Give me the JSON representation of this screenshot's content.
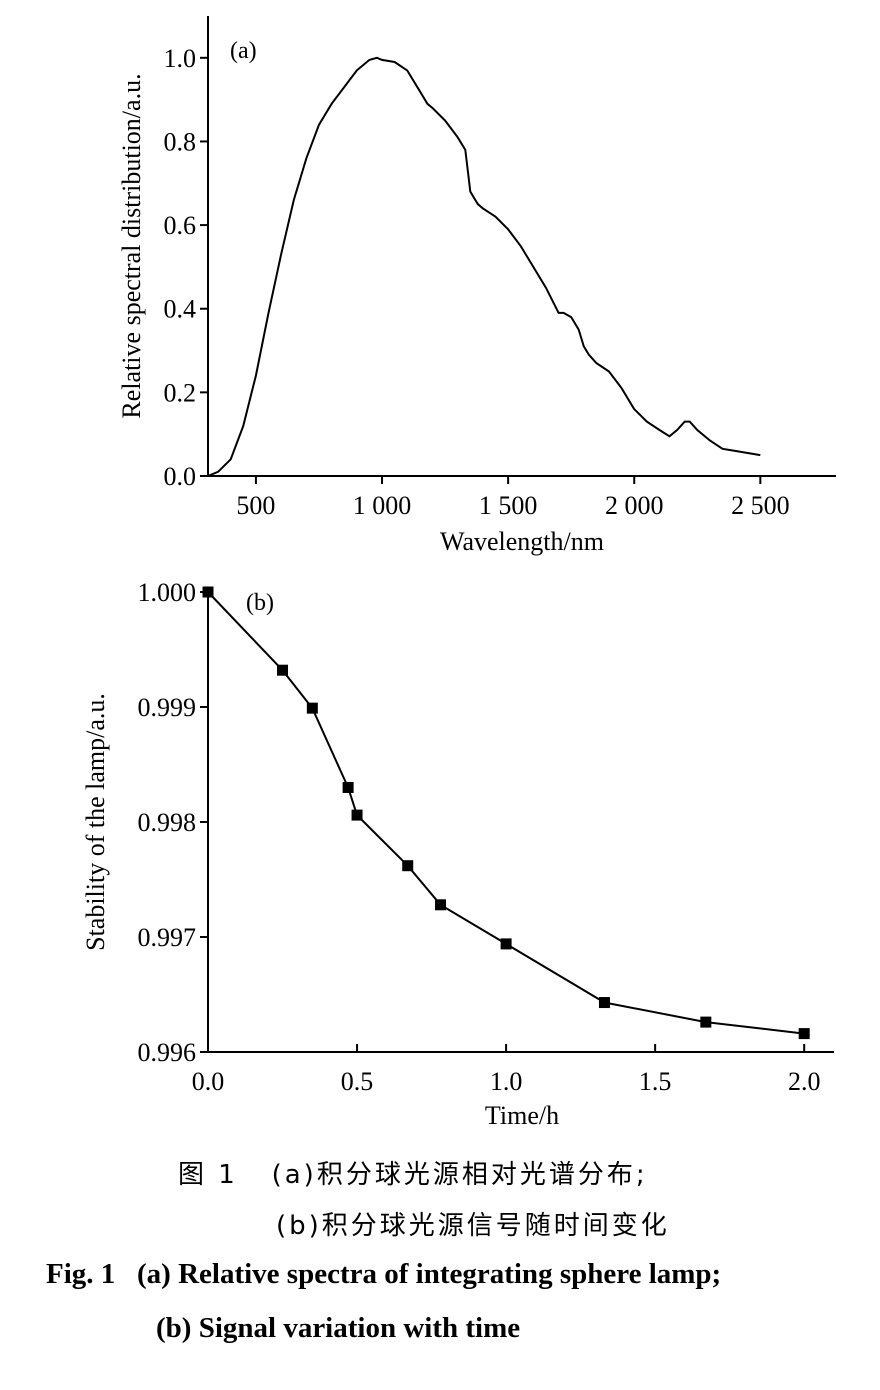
{
  "chart_data": [
    {
      "type": "line",
      "panel_label": "(a)",
      "xlabel": "Wavelength/nm",
      "ylabel": "Relative spectral distribution/a.u.",
      "xlim": [
        310,
        2800
      ],
      "ylim": [
        0,
        1.1
      ],
      "x_ticks": [
        500,
        1000,
        1500,
        2000,
        2500
      ],
      "x_tick_labels": [
        "500",
        "1 000",
        "1 500",
        "2 000",
        "2 500"
      ],
      "y_ticks": [
        0.0,
        0.2,
        0.4,
        0.6,
        0.8,
        1.0
      ],
      "y_tick_labels": [
        "0.0",
        "0.2",
        "0.4",
        "0.6",
        "0.8",
        "1.0"
      ],
      "grid": false,
      "series": [
        {
          "x": [
            310,
            350,
            400,
            450,
            500,
            550,
            600,
            650,
            700,
            750,
            800,
            850,
            900,
            950,
            980,
            1000,
            1050,
            1100,
            1150,
            1180,
            1200,
            1250,
            1300,
            1330,
            1350,
            1370,
            1380,
            1400,
            1450,
            1500,
            1550,
            1600,
            1650,
            1700,
            1720,
            1750,
            1780,
            1800,
            1820,
            1850,
            1900,
            1950,
            2000,
            2050,
            2100,
            2140,
            2170,
            2200,
            2220,
            2250,
            2300,
            2350,
            2400,
            2450,
            2500
          ],
          "y": [
            0.0,
            0.01,
            0.04,
            0.12,
            0.24,
            0.39,
            0.53,
            0.66,
            0.76,
            0.84,
            0.89,
            0.93,
            0.97,
            0.995,
            1.0,
            0.995,
            0.99,
            0.97,
            0.92,
            0.89,
            0.88,
            0.85,
            0.81,
            0.78,
            0.68,
            0.66,
            0.65,
            0.64,
            0.62,
            0.59,
            0.55,
            0.5,
            0.45,
            0.39,
            0.39,
            0.38,
            0.35,
            0.31,
            0.29,
            0.27,
            0.25,
            0.21,
            0.16,
            0.13,
            0.11,
            0.095,
            0.11,
            0.13,
            0.13,
            0.11,
            0.085,
            0.065,
            0.06,
            0.055,
            0.05
          ]
        }
      ]
    },
    {
      "type": "line",
      "panel_label": "(b)",
      "xlabel": "Time/h",
      "ylabel": "Stability of the lamp/a.u.",
      "xlim": [
        0,
        2.1
      ],
      "ylim": [
        0.996,
        1.0
      ],
      "x_ticks": [
        0.0,
        0.5,
        1.0,
        1.5,
        2.0
      ],
      "x_tick_labels": [
        "0.0",
        "0.5",
        "1.0",
        "1.5",
        "2.0"
      ],
      "y_ticks": [
        0.996,
        0.997,
        0.998,
        0.999,
        1.0
      ],
      "y_tick_labels": [
        "0.996",
        "0.997",
        "0.998",
        "0.999",
        "1.000"
      ],
      "grid": false,
      "markers": "square",
      "series": [
        {
          "x": [
            0.0,
            0.25,
            0.35,
            0.47,
            0.5,
            0.67,
            0.78,
            1.0,
            1.33,
            1.67,
            2.0
          ],
          "y": [
            1.0,
            0.99932,
            0.99899,
            0.9983,
            0.99806,
            0.99762,
            0.99728,
            0.99694,
            0.99643,
            0.99626,
            0.99616
          ]
        }
      ]
    }
  ],
  "caption": {
    "cn_line1": "图 1   (a)积分球光源相对光谱分布;",
    "cn_line2": "(b)积分球光源信号随时间变化",
    "en_line1": "Fig. 1   (a) Relative spectra of integrating sphere lamp;",
    "en_line2": "(b) Signal variation with time"
  }
}
